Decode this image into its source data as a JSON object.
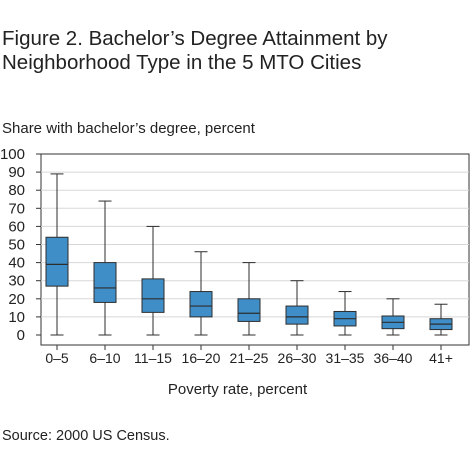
{
  "figure": {
    "title": "Figure 2. Bachelor’s Degree Attainment by Neighborhood Type in the 5 MTO Cities",
    "source": "Source: 2000 US Census."
  },
  "colors": {
    "box_fill": "#3f8ec8",
    "box_stroke": "#2d2d2d",
    "frame": "#333333",
    "grid": "#d8d8d8"
  },
  "chart_data": {
    "type": "boxplot",
    "ylabel": "Share with bachelor’s degree, percent",
    "xlabel": "Poverty rate, percent",
    "ylim": [
      -5,
      100
    ],
    "yticks": [
      0,
      10,
      20,
      30,
      40,
      50,
      60,
      70,
      80,
      90,
      100
    ],
    "grid": true,
    "categories": [
      "0–5",
      "6–10",
      "11–15",
      "16–20",
      "21–25",
      "26–30",
      "31–35",
      "36–40",
      "41+"
    ],
    "series": [
      {
        "boxes": [
          {
            "min": 0,
            "q1": 27,
            "median": 39,
            "q3": 54,
            "max": 89
          },
          {
            "min": 0,
            "q1": 18,
            "median": 26,
            "q3": 40,
            "max": 74
          },
          {
            "min": 0,
            "q1": 12.5,
            "median": 20,
            "q3": 31,
            "max": 60
          },
          {
            "min": 0,
            "q1": 10,
            "median": 16,
            "q3": 24,
            "max": 46
          },
          {
            "min": 0,
            "q1": 7.5,
            "median": 12,
            "q3": 20,
            "max": 40
          },
          {
            "min": 0,
            "q1": 6,
            "median": 10,
            "q3": 16,
            "max": 30
          },
          {
            "min": 0,
            "q1": 5,
            "median": 9,
            "q3": 13,
            "max": 24
          },
          {
            "min": 0,
            "q1": 3.5,
            "median": 7,
            "q3": 10.5,
            "max": 20
          },
          {
            "min": 0,
            "q1": 3,
            "median": 6,
            "q3": 9,
            "max": 17
          }
        ]
      }
    ]
  }
}
